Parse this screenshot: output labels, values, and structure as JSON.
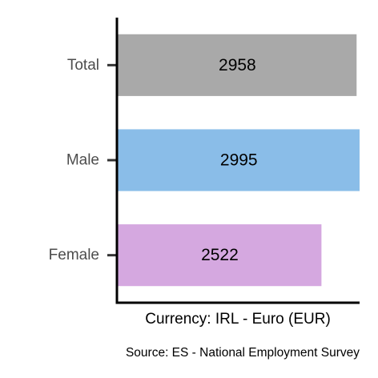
{
  "chart_data": {
    "type": "bar",
    "orientation": "horizontal",
    "categories": [
      "Total",
      "Male",
      "Female"
    ],
    "values": [
      2958,
      2995,
      2522
    ],
    "colors": [
      "#a9a9a9",
      "#8abde8",
      "#d5a8e0"
    ],
    "xlabel": "Currency: IRL - Euro (EUR)",
    "caption": "Source:  ES - National Employment Survey",
    "xlim": [
      0,
      2995
    ],
    "grid": false,
    "legend": "none"
  }
}
